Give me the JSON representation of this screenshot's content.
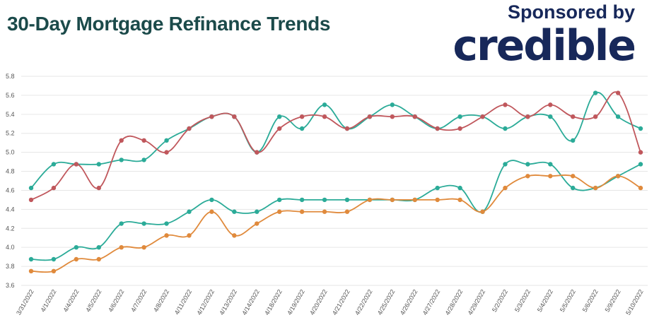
{
  "title": "30-Day Mortgage Refinance Trends",
  "sponsor": {
    "label": "Sponsored by",
    "brand": "credible"
  },
  "chart_data": {
    "type": "line",
    "title": "30-Day Mortgage Refinance Trends",
    "xlabel": "",
    "ylabel": "",
    "ylim": [
      3.6,
      5.8
    ],
    "yticks": [
      "5.8",
      "5.6",
      "5.4",
      "5.2",
      "5.0",
      "4.8",
      "4.6",
      "4.4",
      "4.2",
      "4.0",
      "3.8",
      "3.6"
    ],
    "grid": "horizontal",
    "legend": "none",
    "x": [
      "3/31/2022",
      "4/1/2022",
      "4/4/2022",
      "4/5/2022",
      "4/6/2022",
      "4/7/2022",
      "4/8/2022",
      "4/11/2022",
      "4/12/2022",
      "4/13/2022",
      "4/14/2022",
      "4/18/2022",
      "4/19/2022",
      "4/20/2022",
      "4/21/2022",
      "4/22/2022",
      "4/25/2022",
      "4/26/2022",
      "4/27/2022",
      "4/28/2022",
      "4/29/2022",
      "5/2/2022",
      "5/3/2022",
      "5/4/2022",
      "5/5/2022",
      "5/6/2022",
      "5/9/2022",
      "5/10/2022"
    ],
    "series": [
      {
        "color": "#2bab98",
        "values": [
          4.625,
          4.875,
          4.875,
          4.875,
          4.92,
          4.92,
          5.125,
          5.25,
          5.375,
          5.375,
          5.0,
          5.375,
          5.25,
          5.5,
          5.25,
          5.375,
          5.5,
          5.375,
          5.25,
          5.375,
          5.375,
          5.25,
          5.375,
          5.375,
          5.125,
          5.625,
          5.375,
          5.25
        ]
      },
      {
        "color": "#c0575c",
        "values": [
          4.5,
          4.625,
          4.875,
          4.625,
          5.125,
          5.125,
          5.0,
          5.25,
          5.375,
          5.375,
          5.0,
          5.25,
          5.375,
          5.375,
          5.25,
          5.375,
          5.375,
          5.375,
          5.25,
          5.25,
          5.375,
          5.5,
          5.375,
          5.5,
          5.375,
          5.375,
          5.625,
          5.0
        ]
      },
      {
        "color": "#2bab98",
        "values": [
          3.875,
          3.875,
          4.0,
          4.0,
          4.25,
          4.25,
          4.25,
          4.375,
          4.5,
          4.375,
          4.375,
          4.5,
          4.5,
          4.5,
          4.5,
          4.5,
          4.5,
          4.5,
          4.625,
          4.625,
          4.375,
          4.875,
          4.875,
          4.875,
          4.625,
          4.625,
          4.75,
          4.875
        ]
      },
      {
        "color": "#e08a3c",
        "values": [
          3.75,
          3.75,
          3.875,
          3.875,
          4.0,
          4.0,
          4.125,
          4.125,
          4.375,
          4.125,
          4.25,
          4.375,
          4.375,
          4.375,
          4.375,
          4.5,
          4.5,
          4.5,
          4.5,
          4.5,
          4.375,
          4.625,
          4.75,
          4.75,
          4.75,
          4.625,
          4.75,
          4.625
        ]
      }
    ]
  }
}
